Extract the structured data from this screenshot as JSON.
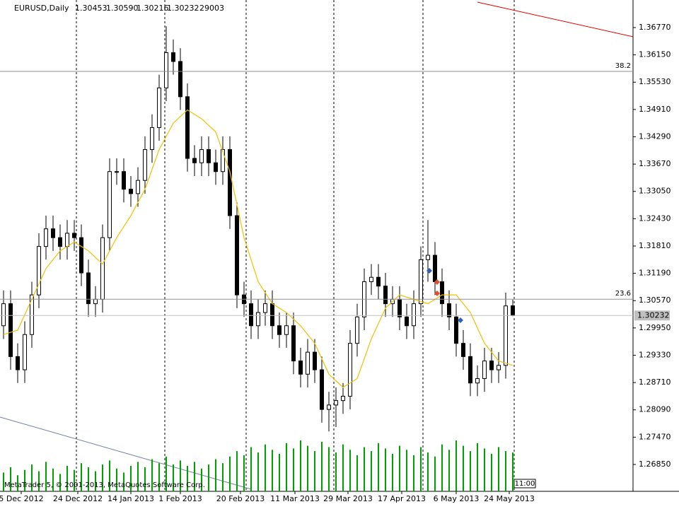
{
  "chart_data": {
    "type": "candlestick",
    "symbol": "EURUSD,Daily",
    "ohlc_labels": {
      "open": "1.30453",
      "high": "1.30590",
      "low": "1.30216",
      "close": "1.30232"
    },
    "footer": "MetaTrader 5, © 2001-2013, MetaQuotes Software Corp.",
    "time_label": "11:00",
    "x_labels": [
      "5 Dec 2012",
      "24 Dec 2012",
      "14 Jan 2013",
      "1 Feb 2013",
      "20 Feb 2013",
      "11 Mar 2013",
      "29 Mar 2013",
      "17 Apr 2013",
      "6 May 2013",
      "24 May 2013"
    ],
    "open": [
      1.3,
      1.305,
      1.293,
      1.29,
      1.298,
      1.307,
      1.318,
      1.322,
      1.32,
      1.318,
      1.321,
      1.32,
      1.312,
      1.305,
      1.306,
      1.32,
      1.335,
      1.335,
      1.331,
      1.33,
      1.333,
      1.34,
      1.345,
      1.354,
      1.362,
      1.36,
      1.352,
      1.338,
      1.337,
      1.34,
      1.337,
      1.335,
      1.34,
      1.325,
      1.307,
      1.305,
      1.3,
      1.303,
      1.305,
      1.3,
      1.298,
      1.3,
      1.292,
      1.289,
      1.294,
      1.29,
      1.281,
      1.282,
      1.283,
      1.284,
      1.296,
      1.302,
      1.31,
      1.311,
      1.309,
      1.305,
      1.306,
      1.302,
      1.3,
      1.305,
      1.315,
      1.316,
      1.31,
      1.305,
      1.302,
      1.296,
      1.293,
      1.287,
      1.288,
      1.292,
      1.29,
      1.291,
      1.30453
    ],
    "high": [
      1.308,
      1.308,
      1.296,
      1.301,
      1.31,
      1.321,
      1.325,
      1.325,
      1.323,
      1.324,
      1.324,
      1.323,
      1.315,
      1.309,
      1.323,
      1.338,
      1.338,
      1.338,
      1.334,
      1.336,
      1.343,
      1.348,
      1.357,
      1.368,
      1.365,
      1.363,
      1.355,
      1.341,
      1.343,
      1.343,
      1.34,
      1.343,
      1.343,
      1.328,
      1.31,
      1.308,
      1.306,
      1.308,
      1.308,
      1.303,
      1.303,
      1.303,
      1.295,
      1.297,
      1.297,
      1.293,
      1.285,
      1.286,
      1.287,
      1.299,
      1.305,
      1.313,
      1.314,
      1.314,
      1.312,
      1.309,
      1.309,
      1.305,
      1.308,
      1.318,
      1.324,
      1.319,
      1.313,
      1.308,
      1.305,
      1.299,
      1.296,
      1.291,
      1.295,
      1.295,
      1.294,
      1.3075,
      1.3059
    ],
    "low": [
      1.297,
      1.29,
      1.287,
      1.287,
      1.295,
      1.304,
      1.315,
      1.317,
      1.315,
      1.315,
      1.317,
      1.309,
      1.302,
      1.302,
      1.303,
      1.317,
      1.332,
      1.328,
      1.327,
      1.327,
      1.33,
      1.337,
      1.342,
      1.351,
      1.357,
      1.349,
      1.335,
      1.334,
      1.334,
      1.334,
      1.332,
      1.332,
      1.322,
      1.304,
      1.302,
      1.297,
      1.297,
      1.3,
      1.297,
      1.295,
      1.295,
      1.289,
      1.286,
      1.286,
      1.287,
      1.278,
      1.276,
      1.277,
      1.28,
      1.281,
      1.293,
      1.299,
      1.307,
      1.306,
      1.302,
      1.302,
      1.299,
      1.297,
      1.297,
      1.302,
      1.31,
      1.307,
      1.302,
      1.299,
      1.293,
      1.29,
      1.284,
      1.284,
      1.285,
      1.287,
      1.287,
      1.288,
      1.30216
    ],
    "close": [
      1.305,
      1.293,
      1.29,
      1.298,
      1.307,
      1.318,
      1.322,
      1.32,
      1.318,
      1.321,
      1.32,
      1.312,
      1.305,
      1.306,
      1.32,
      1.335,
      1.335,
      1.331,
      1.33,
      1.333,
      1.34,
      1.345,
      1.354,
      1.362,
      1.36,
      1.352,
      1.338,
      1.337,
      1.34,
      1.337,
      1.335,
      1.34,
      1.325,
      1.307,
      1.305,
      1.3,
      1.303,
      1.305,
      1.3,
      1.298,
      1.3,
      1.292,
      1.289,
      1.294,
      1.29,
      1.281,
      1.282,
      1.283,
      1.284,
      1.296,
      1.302,
      1.31,
      1.311,
      1.309,
      1.305,
      1.306,
      1.302,
      1.3,
      1.305,
      1.315,
      1.316,
      1.31,
      1.305,
      1.302,
      1.296,
      1.293,
      1.287,
      1.288,
      1.292,
      1.29,
      1.291,
      1.3045,
      1.30232
    ],
    "volume": [
      14000,
      18000,
      12000,
      16000,
      20000,
      15000,
      22000,
      17000,
      13000,
      19000,
      16000,
      21000,
      18000,
      15000,
      20000,
      23000,
      17000,
      14000,
      19000,
      22000,
      18000,
      24000,
      21000,
      26000,
      20000,
      23000,
      19000,
      22000,
      17000,
      20000,
      24000,
      21000,
      26000,
      30000,
      27000,
      33000,
      29000,
      35000,
      31000,
      28000,
      36000,
      32000,
      38000,
      34000,
      30000,
      37000,
      33000,
      29000,
      35000,
      31000,
      27000,
      33000,
      30000,
      36000,
      32000,
      28000,
      34000,
      31000,
      27000,
      33000,
      29000,
      26000,
      35000,
      31000,
      38000,
      34000,
      30000,
      36000,
      32000,
      28000,
      33000,
      30000,
      29003
    ],
    "volume_color": "#00a000",
    "ma": [
      1.298,
      1.2985,
      1.299,
      1.3025,
      1.306,
      1.3095,
      1.313,
      1.315,
      1.317,
      1.318,
      1.319,
      1.318,
      1.317,
      1.3155,
      1.314,
      1.317,
      1.32,
      1.3225,
      1.325,
      1.328,
      1.331,
      1.3355,
      1.34,
      1.343,
      1.346,
      1.3475,
      1.349,
      1.348,
      1.347,
      1.3455,
      1.344,
      1.3395,
      1.335,
      1.3275,
      1.32,
      1.315,
      1.31,
      1.3075,
      1.305,
      1.304,
      1.303,
      1.3015,
      1.3,
      1.298,
      1.296,
      1.2925,
      1.289,
      1.2875,
      1.286,
      1.287,
      1.288,
      1.2925,
      1.297,
      1.3005,
      1.304,
      1.3055,
      1.307,
      1.3065,
      1.306,
      1.3055,
      1.305,
      1.306,
      1.307,
      1.307,
      1.307,
      1.305,
      1.303,
      1.2995,
      1.296,
      1.294,
      1.292,
      1.2915,
      1.291
    ],
    "ma_color": "#f0c000",
    "fibo": [
      {
        "label": "38.2",
        "value": 1.35774
      },
      {
        "label": "23.6",
        "value": 1.30603
      }
    ],
    "ylim": [
      1.2624,
      1.37396
    ],
    "yticks": [
      {
        "value": 1.3677,
        "label": "1.36770"
      },
      {
        "value": 1.3615,
        "label": "1.36150"
      },
      {
        "value": 1.3553,
        "label": "1.35530"
      },
      {
        "value": 1.3491,
        "label": "1.34910"
      },
      {
        "value": 1.3429,
        "label": "1.34290"
      },
      {
        "value": 1.3367,
        "label": "1.33670"
      },
      {
        "value": 1.3305,
        "label": "1.33050"
      },
      {
        "value": 1.3243,
        "label": "1.32430"
      },
      {
        "value": 1.3181,
        "label": "1.31810"
      },
      {
        "value": 1.3119,
        "label": "1.31190"
      },
      {
        "value": 1.3057,
        "label": "1.30570"
      },
      {
        "value": 1.2995,
        "label": "1.29950"
      },
      {
        "value": 1.2933,
        "label": "1.29330"
      },
      {
        "value": 1.2871,
        "label": "1.28710"
      },
      {
        "value": 1.2809,
        "label": "1.28090"
      },
      {
        "value": 1.2747,
        "label": "1.27470"
      },
      {
        "value": 1.2685,
        "label": "1.26850"
      }
    ]
  }
}
